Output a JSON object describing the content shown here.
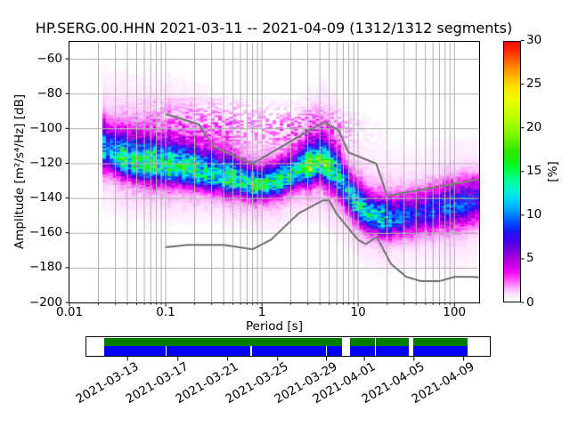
{
  "chart_data": {
    "type": "heatmap",
    "title": "HP.SERG.00.HHN   2021-03-11 -- 2021-04-09  (1312/1312 segments)",
    "xlabel": "Period [s]",
    "ylabel": "Amplitude [m²/s⁴/Hz] [dB]",
    "x_scale": "log",
    "xlim": [
      0.01,
      179
    ],
    "ylim": [
      -200,
      -50
    ],
    "grid": {
      "color": "#b0b0b0",
      "horizontal_major": true,
      "vertical_minor": true
    },
    "x_ticks": {
      "values": [
        0.01,
        0.1,
        1,
        10,
        100
      ],
      "labels": [
        "0.01",
        "0.1",
        "1",
        "10",
        "100"
      ]
    },
    "y_ticks": {
      "values": [
        -60,
        -80,
        -100,
        -120,
        -140,
        -160,
        -180,
        -200
      ],
      "labels": [
        "−60",
        "−80",
        "−100",
        "−120",
        "−140",
        "−160",
        "−180",
        "−200"
      ]
    },
    "colorbar": {
      "label": "[%]",
      "lim": [
        0,
        30
      ],
      "ticks": {
        "values": [
          0,
          5,
          10,
          15,
          20,
          25,
          30
        ],
        "labels": [
          "0",
          "5",
          "10",
          "15",
          "20",
          "25",
          "30"
        ]
      },
      "stops": [
        [
          0,
          "#ffffff"
        ],
        [
          0.8,
          "#ffe3ff"
        ],
        [
          1.6,
          "#ffa8ff"
        ],
        [
          2.4,
          "#ff5aff"
        ],
        [
          3.2,
          "#f613f6"
        ],
        [
          4,
          "#d400e9"
        ],
        [
          5,
          "#a800e0"
        ],
        [
          6,
          "#7400e0"
        ],
        [
          7,
          "#4400e8"
        ],
        [
          8,
          "#1c14f4"
        ],
        [
          9,
          "#0048ff"
        ],
        [
          10,
          "#0080ff"
        ],
        [
          11,
          "#00b4ff"
        ],
        [
          12,
          "#00dcf4"
        ],
        [
          13,
          "#00f4cc"
        ],
        [
          14,
          "#00ff94"
        ],
        [
          15,
          "#00ff50"
        ],
        [
          16,
          "#0cf414"
        ],
        [
          17.5,
          "#30e800"
        ],
        [
          19,
          "#70f400"
        ],
        [
          21,
          "#b4ff00"
        ],
        [
          23,
          "#e8ff00"
        ],
        [
          24.5,
          "#ffe800"
        ],
        [
          26,
          "#ffb400"
        ],
        [
          27.5,
          "#ff7000"
        ],
        [
          29,
          "#ff2800"
        ],
        [
          30,
          "#ee0c00"
        ]
      ]
    },
    "noise_models": {
      "color": "#7d7d7d",
      "high_noise_model": [
        [
          0.1,
          -91.5
        ],
        [
          0.22,
          -97.4
        ],
        [
          0.32,
          -110.5
        ],
        [
          0.8,
          -120.0
        ],
        [
          3.8,
          -98.0
        ],
        [
          4.6,
          -96.5
        ],
        [
          6.3,
          -101.0
        ],
        [
          7.9,
          -113.5
        ],
        [
          15.4,
          -120.0
        ],
        [
          20.0,
          -138.5
        ],
        [
          179.0,
          -129.0
        ]
      ],
      "low_noise_model": [
        [
          0.1,
          -168.0
        ],
        [
          0.17,
          -166.7
        ],
        [
          0.4,
          -166.7
        ],
        [
          0.8,
          -169.2
        ],
        [
          1.24,
          -163.7
        ],
        [
          2.4,
          -148.6
        ],
        [
          4.3,
          -141.1
        ],
        [
          5.0,
          -141.1
        ],
        [
          6.0,
          -149.0
        ],
        [
          10.0,
          -163.8
        ],
        [
          12.0,
          -166.2
        ],
        [
          15.6,
          -162.1
        ],
        [
          21.9,
          -177.5
        ],
        [
          31.6,
          -185.0
        ],
        [
          45.0,
          -187.5
        ],
        [
          70.0,
          -187.5
        ],
        [
          101.0,
          -185.0
        ],
        [
          154.0,
          -185.0
        ],
        [
          179.0,
          -185.4
        ]
      ]
    },
    "density_band": {
      "comment": "PPSD probability band: [log10(period s), center dB, sigma below, sigma above, peak percent]",
      "min_period_s": 0.022,
      "period_bin_decades": 0.0376,
      "db_bin": 1,
      "points": [
        [
          -1.66,
          -111.0,
          7.0,
          9.0,
          9.0
        ],
        [
          -1.45,
          -117.0,
          6.0,
          8.5,
          12.0
        ],
        [
          -1.15,
          -120.5,
          6.0,
          9.0,
          13.0
        ],
        [
          -0.85,
          -122.5,
          5.5,
          9.0,
          13.0
        ],
        [
          -0.6,
          -126.0,
          5.0,
          9.0,
          12.0
        ],
        [
          -0.3,
          -129.0,
          5.0,
          7.5,
          12.0
        ],
        [
          -0.05,
          -132.5,
          4.5,
          5.5,
          13.0
        ],
        [
          0.15,
          -130.5,
          5.0,
          6.0,
          12.0
        ],
        [
          0.35,
          -125.0,
          5.0,
          7.0,
          13.0
        ],
        [
          0.62,
          -118.5,
          6.0,
          8.0,
          16.0
        ],
        [
          0.78,
          -125.0,
          7.0,
          8.0,
          11.0
        ],
        [
          0.95,
          -141.0,
          6.0,
          7.0,
          11.0
        ],
        [
          1.1,
          -149.0,
          5.5,
          7.0,
          12.0
        ],
        [
          1.3,
          -152.5,
          5.5,
          7.5,
          10.0
        ],
        [
          1.55,
          -150.0,
          6.5,
          8.0,
          7.5
        ],
        [
          1.8,
          -146.0,
          7.5,
          8.0,
          7.0
        ],
        [
          2.05,
          -143.0,
          8.0,
          8.0,
          7.0
        ],
        [
          2.26,
          -140.5,
          8.0,
          8.0,
          7.0
        ]
      ]
    },
    "timeline": {
      "top_color": "#007d00",
      "bottom_color": "#0000f5",
      "green_segments_pct": [
        [
          4.35,
          63.35
        ],
        [
          65.34,
          71.59
        ],
        [
          71.81,
          79.91
        ],
        [
          81.02,
          94.48
        ]
      ],
      "blue_segments_pct": [
        [
          4.35,
          19.54
        ],
        [
          19.76,
          40.73
        ],
        [
          40.95,
          59.38
        ],
        [
          59.6,
          63.35
        ],
        [
          65.34,
          71.59
        ],
        [
          71.81,
          79.91
        ],
        [
          81.02,
          94.48
        ]
      ],
      "ticks": [
        {
          "pct": 10.2,
          "label": "2021-03-13"
        },
        {
          "pct": 22.7,
          "label": "2021-03-17"
        },
        {
          "pct": 35.0,
          "label": "2021-03-21"
        },
        {
          "pct": 47.4,
          "label": "2021-03-25"
        },
        {
          "pct": 59.5,
          "label": "2021-03-29"
        },
        {
          "pct": 68.9,
          "label": "2021-04-01"
        },
        {
          "pct": 81.2,
          "label": "2021-04-05"
        },
        {
          "pct": 93.5,
          "label": "2021-04-09"
        }
      ]
    }
  }
}
